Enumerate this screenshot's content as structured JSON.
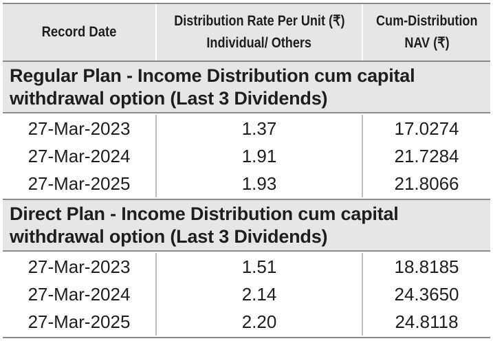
{
  "header": {
    "record_date": "Record Date",
    "rate_line1": "Distribution Rate Per Unit  (₹)",
    "rate_line2": "Individual/ Others",
    "nav_line1": "Cum-Distribution",
    "nav_line2": "NAV (₹)"
  },
  "sections": [
    {
      "title": "Regular Plan - Income Distribution cum capital withdrawal option (Last 3 Dividends)",
      "rows": [
        {
          "date": "27-Mar-2023",
          "rate": "1.37",
          "nav": "17.0274"
        },
        {
          "date": "27-Mar-2024",
          "rate": "1.91",
          "nav": "21.7284"
        },
        {
          "date": "27-Mar-2025",
          "rate": "1.93",
          "nav": "21.8066"
        }
      ]
    },
    {
      "title": "Direct Plan - Income Distribution cum capital withdrawal option (Last 3 Dividends)",
      "rows": [
        {
          "date": "27-Mar-2023",
          "rate": "1.51",
          "nav": "18.8185"
        },
        {
          "date": "27-Mar-2024",
          "rate": "2.14",
          "nav": "24.3650"
        },
        {
          "date": "27-Mar-2025",
          "rate": "2.20",
          "nav": "24.8118"
        }
      ]
    }
  ]
}
